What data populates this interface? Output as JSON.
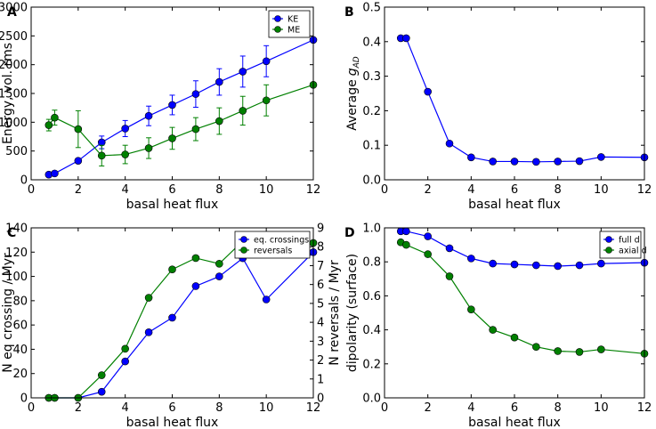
{
  "chart_data": [
    {
      "panel": "A",
      "type": "line",
      "xlabel": "basal heat flux",
      "ylabel": "Energy, vol. rms",
      "xlim": [
        0,
        12
      ],
      "ylim": [
        0,
        3000
      ],
      "xticks": [
        0,
        2,
        4,
        6,
        8,
        10,
        12
      ],
      "yticks": [
        0,
        500,
        1000,
        1500,
        2000,
        2500,
        3000
      ],
      "legend": "top-right",
      "series": [
        {
          "name": "KE",
          "color": "#0000ff",
          "x": [
            0.75,
            1,
            2,
            3,
            4,
            5,
            6,
            7,
            8,
            9,
            10,
            12
          ],
          "y": [
            90,
            110,
            330,
            650,
            890,
            1110,
            1300,
            1490,
            1700,
            1880,
            2060,
            2430
          ],
          "err": [
            20,
            20,
            40,
            110,
            140,
            170,
            170,
            230,
            230,
            270,
            270,
            0
          ]
        },
        {
          "name": "ME",
          "color": "#008000",
          "x": [
            0.75,
            1,
            2,
            3,
            4,
            5,
            6,
            7,
            8,
            9,
            10,
            12
          ],
          "y": [
            950,
            1080,
            880,
            420,
            440,
            550,
            720,
            880,
            1020,
            1200,
            1380,
            1650
          ],
          "err": [
            100,
            130,
            320,
            180,
            160,
            180,
            190,
            200,
            230,
            250,
            270,
            0
          ]
        }
      ]
    },
    {
      "panel": "B",
      "type": "line",
      "xlabel": "basal heat flux",
      "ylabel": "Average",
      "ylabel_symbol": "g",
      "ylabel_subscript": "AD",
      "xlim": [
        0,
        12
      ],
      "ylim": [
        0,
        0.5
      ],
      "xticks": [
        0,
        2,
        4,
        6,
        8,
        10,
        12
      ],
      "yticks": [
        "0.0",
        "0.1",
        "0.2",
        "0.3",
        "0.4",
        "0.5"
      ],
      "series": [
        {
          "name": "g_AD",
          "color": "#0000ff",
          "x": [
            0.75,
            1,
            2,
            3,
            4,
            5,
            6,
            7,
            8,
            9,
            10,
            12
          ],
          "y": [
            0.41,
            0.41,
            0.255,
            0.105,
            0.065,
            0.053,
            0.053,
            0.052,
            0.053,
            0.054,
            0.066,
            0.065
          ]
        }
      ]
    },
    {
      "panel": "C",
      "type": "line",
      "xlabel": "basal heat flux",
      "ylabel": "N eq crossing / Myr",
      "ylabel_right": "N reversals / Myr",
      "xlim": [
        0,
        12
      ],
      "ylim": [
        0,
        140
      ],
      "ylim_right": [
        0,
        9
      ],
      "xticks": [
        0,
        2,
        4,
        6,
        8,
        10,
        12
      ],
      "yticks": [
        0,
        20,
        40,
        60,
        80,
        100,
        120,
        140
      ],
      "yticks_right": [
        0,
        1,
        2,
        3,
        4,
        5,
        6,
        7,
        8,
        9
      ],
      "legend": "top-right",
      "series": [
        {
          "name": "eq. crossings",
          "color": "#0000ff",
          "axis": "left",
          "x": [
            0.75,
            1,
            2,
            3,
            4,
            5,
            6,
            7,
            8,
            9,
            10,
            12
          ],
          "y": [
            0,
            0,
            0,
            5,
            30,
            54,
            66,
            92,
            100,
            115,
            81,
            120
          ]
        },
        {
          "name": "reversals",
          "color": "#008000",
          "axis": "right",
          "x": [
            0.75,
            1,
            2,
            3,
            4,
            5,
            6,
            7,
            8,
            9,
            10,
            12
          ],
          "y": [
            0,
            0,
            0,
            1.2,
            2.6,
            5.3,
            6.8,
            7.4,
            7.1,
            8.3,
            7.8,
            8.2
          ]
        }
      ]
    },
    {
      "panel": "D",
      "type": "line",
      "xlabel": "basal heat flux",
      "ylabel": "dipolarity (surface)",
      "xlim": [
        0,
        12
      ],
      "ylim": [
        0,
        1
      ],
      "xticks": [
        0,
        2,
        4,
        6,
        8,
        10,
        12
      ],
      "yticks": [
        "0.0",
        "0.2",
        "0.4",
        "0.6",
        "0.8",
        "1.0"
      ],
      "legend": "top-right",
      "series": [
        {
          "name": "full d",
          "color": "#0000ff",
          "x": [
            0.75,
            1,
            2,
            3,
            4,
            5,
            6,
            7,
            8,
            9,
            10,
            12
          ],
          "y": [
            0.98,
            0.98,
            0.95,
            0.88,
            0.82,
            0.79,
            0.785,
            0.78,
            0.775,
            0.78,
            0.79,
            0.795
          ]
        },
        {
          "name": "axial d",
          "color": "#008000",
          "x": [
            0.75,
            1,
            2,
            3,
            4,
            5,
            6,
            7,
            8,
            9,
            10,
            12
          ],
          "y": [
            0.915,
            0.9,
            0.845,
            0.715,
            0.52,
            0.4,
            0.355,
            0.3,
            0.275,
            0.27,
            0.285,
            0.26
          ]
        }
      ]
    }
  ]
}
